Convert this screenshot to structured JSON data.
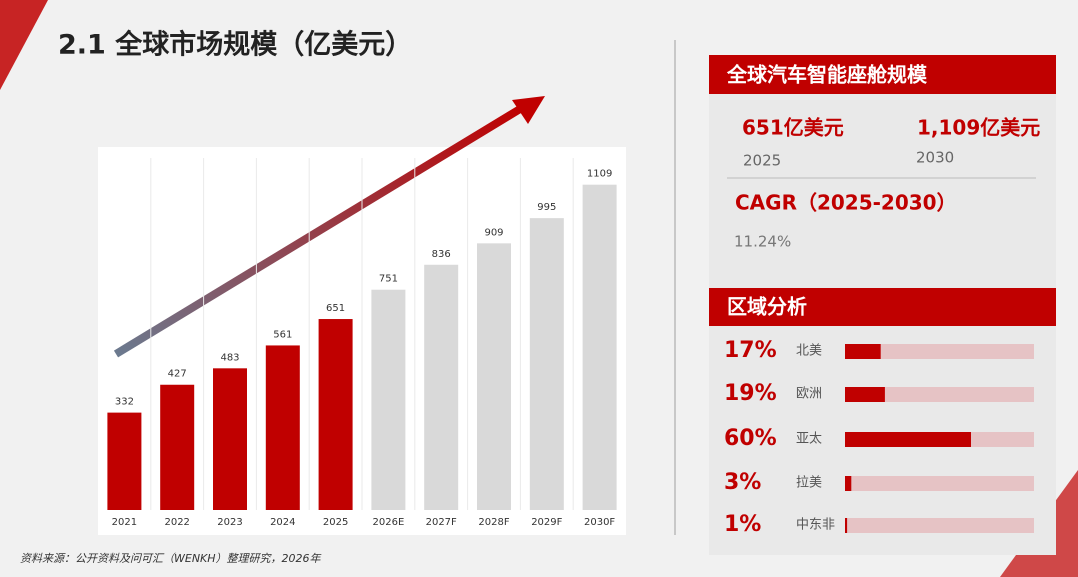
{
  "header": {
    "title": "2.1 全球市场规模（亿美元）"
  },
  "chart_data": [
    {
      "type": "bar",
      "categories": [
        "2021",
        "2022",
        "2023",
        "2024",
        "2025",
        "2026E",
        "2027F",
        "2028F",
        "2029F",
        "2030F"
      ],
      "values": [
        332,
        427,
        483,
        561,
        651,
        751,
        836,
        909,
        995,
        1109
      ],
      "colors": [
        "#c00000",
        "#c00000",
        "#c00000",
        "#c00000",
        "#c00000",
        "#d9d9d9",
        "#d9d9d9",
        "#d9d9d9",
        "#d9d9d9",
        "#d9d9d9"
      ],
      "ylim": [
        0,
        1200
      ]
    },
    {
      "type": "bar",
      "horizontal": true,
      "title": "区域分析",
      "categories": [
        "北美",
        "欧洲",
        "亚太",
        "拉美",
        "中东非"
      ],
      "values": [
        17,
        19,
        60,
        3,
        1
      ],
      "value_labels": [
        "17%",
        "19%",
        "60%",
        "3%",
        "1%"
      ],
      "color": "#c00000",
      "track_color": "#e6c3c5",
      "xlim": [
        0,
        90
      ]
    }
  ],
  "summary": {
    "title": "全球汽车智能座舱规模",
    "stats": [
      {
        "value": "651亿美元",
        "year": "2025"
      },
      {
        "value": "1,109亿美元",
        "year": "2030"
      }
    ],
    "cagr_label": "CAGR（2025-2030）",
    "cagr_value": "11.24%"
  },
  "footer": {
    "source": "资料来源：公开资料及问可汇（WENKH）整理研究，2026年"
  }
}
